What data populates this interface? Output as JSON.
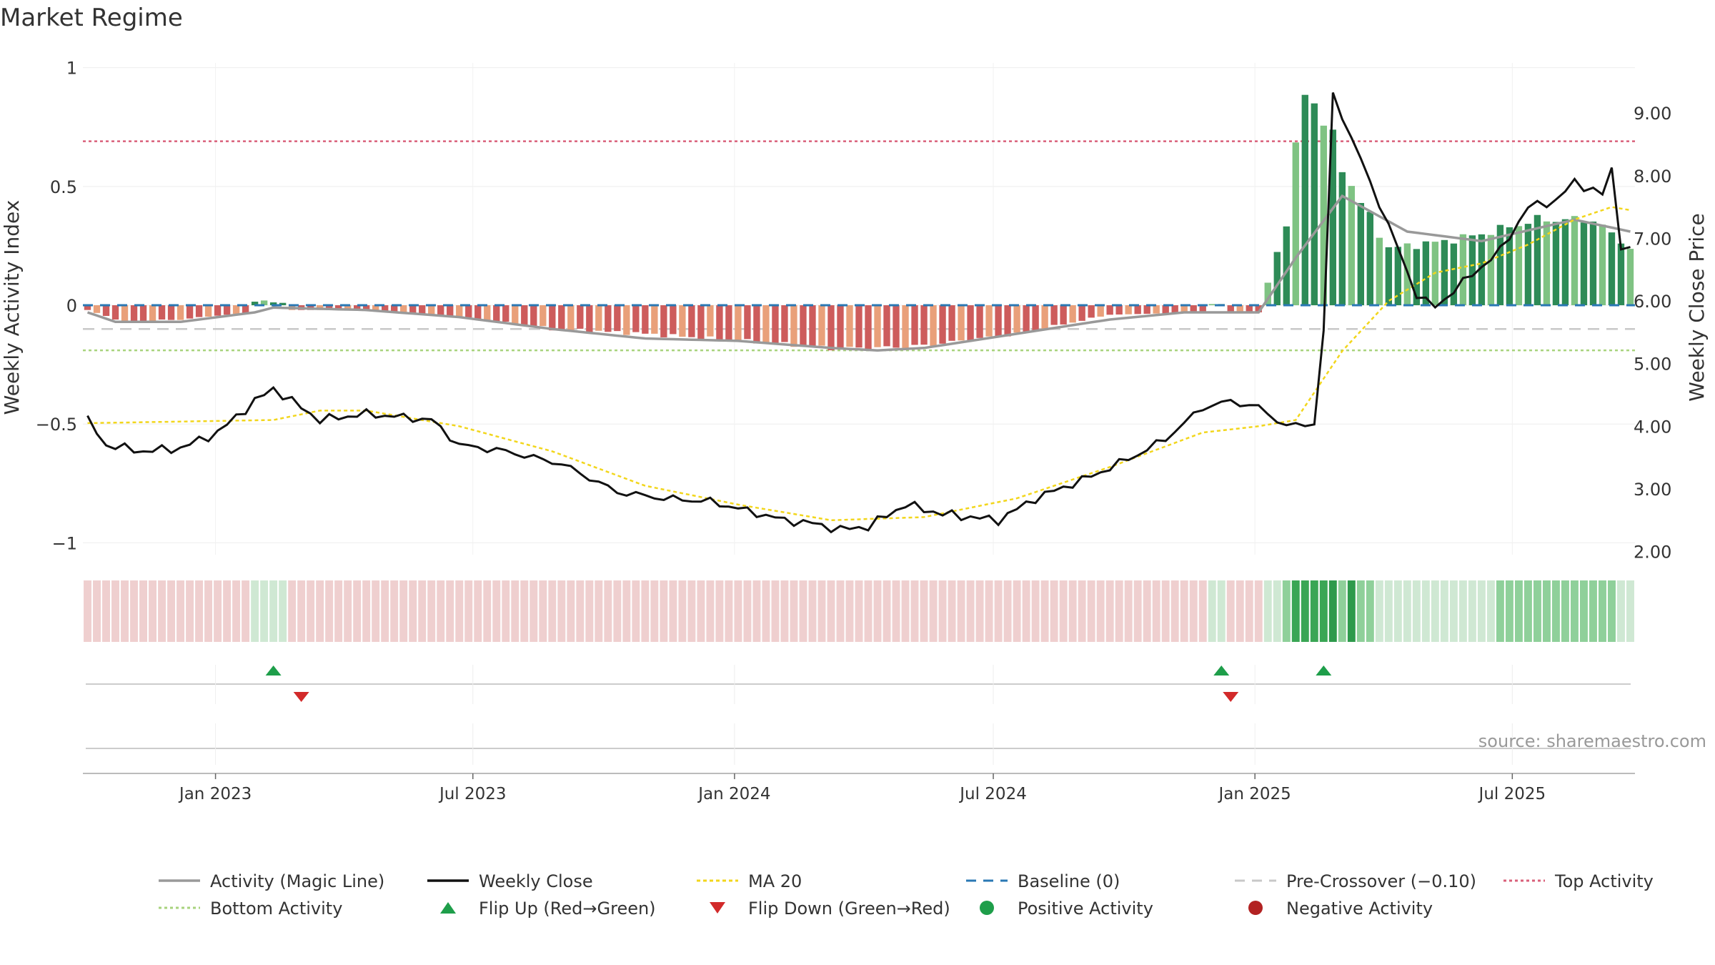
{
  "title": "Market Regime",
  "source": "source: sharemaestro.com",
  "colors": {
    "activity_line": "#999999",
    "close_line": "#111111",
    "ma20": "#f2d61c",
    "baseline": "#2a78b4",
    "precross": "#c8c8c8",
    "top": "#d9607a",
    "bottom": "#a8d37d",
    "pos_dark": "#2e8b57",
    "pos_light": "#7fc383",
    "neg_dark": "#cd5c5c",
    "neg_light": "#e9a07a",
    "flip_up": "#1e9e4a",
    "flip_down": "#d22a2a",
    "pos_marker": "#1e9e4a",
    "neg_marker": "#b22222"
  },
  "chart_data": {
    "type": "bar",
    "title": "Market Regime",
    "left_axis": {
      "label": "Weekly Activity Index",
      "range": [
        -1.05,
        1.02
      ],
      "ticks": [
        1,
        0.5,
        0,
        -0.5,
        -1
      ],
      "tick_labels": [
        "1",
        "0.5",
        "0",
        "−0.5",
        "−1"
      ]
    },
    "right_axis": {
      "label": "Weekly Close Price",
      "range": [
        1.95,
        9.8
      ],
      "ticks": [
        9,
        8,
        7,
        6,
        5,
        4,
        3,
        2
      ],
      "tick_labels": [
        "9.00",
        "8.00",
        "7.00",
        "6.00",
        "5.00",
        "4.00",
        "3.00",
        "2.00"
      ]
    },
    "x_axis": {
      "start": "2022-10-03",
      "end": "2025-09-22",
      "tick_dates": [
        "2023-01-01",
        "2023-07-01",
        "2024-01-01",
        "2024-07-01",
        "2025-01-01",
        "2025-07-01"
      ],
      "tick_labels": [
        "Jan 2023",
        "Jul 2023",
        "Jan 2024",
        "Jul 2024",
        "Jan 2025",
        "Jul 2025"
      ]
    },
    "thresholds": {
      "baseline": 0,
      "pre_crossover": -0.1,
      "top_activity": 0.69,
      "bottom_activity": -0.19
    },
    "activity_anchors": [
      [
        0,
        -0.02
      ],
      [
        4,
        -0.07
      ],
      [
        10,
        -0.06
      ],
      [
        20,
        -0.02
      ],
      [
        30,
        -0.02
      ],
      [
        40,
        -0.05
      ],
      [
        50,
        -0.1
      ],
      [
        60,
        -0.12
      ],
      [
        70,
        -0.15
      ],
      [
        77,
        -0.17
      ],
      [
        80,
        -0.18
      ],
      [
        85,
        -0.18
      ],
      [
        90,
        -0.17
      ],
      [
        100,
        -0.12
      ],
      [
        110,
        -0.04
      ],
      [
        120,
        -0.03
      ],
      [
        126,
        -0.03
      ],
      [
        129,
        0.35
      ],
      [
        131,
        0.92
      ],
      [
        133,
        0.78
      ],
      [
        136,
        0.5
      ],
      [
        140,
        0.24
      ],
      [
        146,
        0.27
      ],
      [
        150,
        0.3
      ],
      [
        156,
        0.36
      ],
      [
        162,
        0.36
      ],
      [
        166,
        0.24
      ]
    ],
    "sign_overrides": [
      [
        18,
        0.015
      ],
      [
        19,
        0.02
      ],
      [
        20,
        0.012
      ],
      [
        21,
        0.01
      ],
      [
        121,
        0.005
      ],
      [
        122,
        0.005
      ]
    ],
    "magic_anchors": [
      [
        0,
        -0.03
      ],
      [
        3,
        -0.07
      ],
      [
        10,
        -0.07
      ],
      [
        18,
        -0.03
      ],
      [
        20,
        -0.01
      ],
      [
        30,
        -0.02
      ],
      [
        40,
        -0.05
      ],
      [
        50,
        -0.1
      ],
      [
        60,
        -0.14
      ],
      [
        70,
        -0.15
      ],
      [
        80,
        -0.18
      ],
      [
        85,
        -0.19
      ],
      [
        90,
        -0.18
      ],
      [
        100,
        -0.12
      ],
      [
        110,
        -0.06
      ],
      [
        118,
        -0.03
      ],
      [
        126,
        -0.03
      ],
      [
        130,
        0.2
      ],
      [
        135,
        0.46
      ],
      [
        142,
        0.31
      ],
      [
        150,
        0.27
      ],
      [
        160,
        0.36
      ],
      [
        166,
        0.31
      ]
    ],
    "close_anchors": [
      [
        0,
        4.1
      ],
      [
        2,
        3.7
      ],
      [
        6,
        3.6
      ],
      [
        10,
        3.65
      ],
      [
        14,
        3.9
      ],
      [
        18,
        4.4
      ],
      [
        20,
        4.6
      ],
      [
        25,
        4.1
      ],
      [
        30,
        4.2
      ],
      [
        37,
        4.1
      ],
      [
        40,
        3.7
      ],
      [
        45,
        3.6
      ],
      [
        51,
        3.4
      ],
      [
        57,
        2.95
      ],
      [
        62,
        2.85
      ],
      [
        67,
        2.8
      ],
      [
        75,
        2.5
      ],
      [
        78,
        2.45
      ],
      [
        81,
        2.35
      ],
      [
        84,
        2.4
      ],
      [
        88,
        2.75
      ],
      [
        92,
        2.6
      ],
      [
        98,
        2.5
      ],
      [
        102,
        2.85
      ],
      [
        108,
        3.2
      ],
      [
        113,
        3.55
      ],
      [
        116,
        3.8
      ],
      [
        120,
        4.3
      ],
      [
        123,
        4.4
      ],
      [
        126,
        4.3
      ],
      [
        129,
        4.0
      ],
      [
        132,
        4.05
      ],
      [
        133,
        5.5
      ],
      [
        134,
        9.3
      ],
      [
        136,
        8.6
      ],
      [
        140,
        7.2
      ],
      [
        143,
        6.1
      ],
      [
        145,
        5.9
      ],
      [
        148,
        6.3
      ],
      [
        152,
        6.8
      ],
      [
        155,
        7.5
      ],
      [
        158,
        7.6
      ],
      [
        160,
        7.9
      ],
      [
        163,
        7.7
      ],
      [
        164,
        8.1
      ],
      [
        165,
        6.9
      ],
      [
        166,
        6.8
      ]
    ],
    "ma20_anchors": [
      [
        0,
        4.05
      ],
      [
        20,
        4.1
      ],
      [
        25,
        4.25
      ],
      [
        30,
        4.25
      ],
      [
        40,
        4.0
      ],
      [
        50,
        3.6
      ],
      [
        60,
        3.05
      ],
      [
        70,
        2.75
      ],
      [
        80,
        2.5
      ],
      [
        90,
        2.55
      ],
      [
        100,
        2.85
      ],
      [
        110,
        3.35
      ],
      [
        120,
        3.9
      ],
      [
        126,
        4.0
      ],
      [
        130,
        4.1
      ],
      [
        135,
        5.2
      ],
      [
        140,
        6.0
      ],
      [
        145,
        6.45
      ],
      [
        150,
        6.6
      ],
      [
        155,
        6.9
      ],
      [
        160,
        7.3
      ],
      [
        164,
        7.5
      ],
      [
        166,
        7.45
      ]
    ],
    "flip_up_weeks": [
      20,
      122,
      133
    ],
    "flip_down_weeks": [
      23,
      123
    ],
    "n_weeks": 167
  },
  "legend": [
    {
      "key": "activity",
      "label": "Activity (Magic Line)"
    },
    {
      "key": "close",
      "label": "Weekly Close"
    },
    {
      "key": "ma20",
      "label": "MA 20"
    },
    {
      "key": "baseline",
      "label": "Baseline (0)"
    },
    {
      "key": "precross",
      "label": "Pre-Crossover (−0.10)"
    },
    {
      "key": "top",
      "label": "Top Activity"
    },
    {
      "key": "bottom",
      "label": "Bottom Activity"
    },
    {
      "key": "flipup",
      "label": "Flip Up (Red→Green)"
    },
    {
      "key": "flipdown",
      "label": "Flip Down (Green→Red)"
    },
    {
      "key": "posact",
      "label": "Positive Activity"
    },
    {
      "key": "negact",
      "label": "Negative Activity"
    }
  ]
}
